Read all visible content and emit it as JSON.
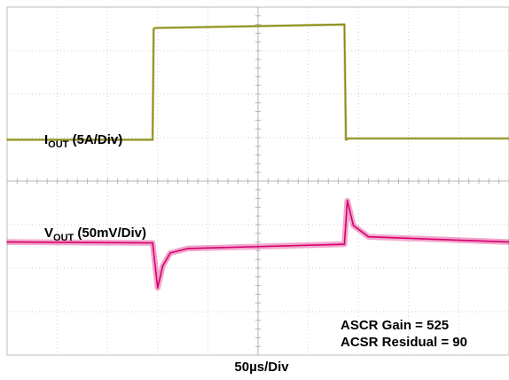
{
  "chart_data": {
    "type": "line",
    "title": "",
    "xlabel": "50µs/Div",
    "ylabel": "",
    "grid": true,
    "x_divisions": 10,
    "y_divisions": 8,
    "xlim": [
      0,
      10
    ],
    "x_unit": "div",
    "y_unit": "div",
    "ylim": [
      0,
      8
    ],
    "series": [
      {
        "name": "IOUT (5A/Div)",
        "color": "#8a8a12",
        "x": [
          0.0,
          2.9,
          2.92,
          2.95,
          6.72,
          6.75,
          6.8,
          10.0
        ],
        "y": [
          4.95,
          4.95,
          7.5,
          7.52,
          7.6,
          4.95,
          4.98,
          4.98
        ]
      },
      {
        "name": "VOUT (50mV/Div)",
        "color": "#d6006e",
        "x": [
          0.0,
          2.9,
          3.0,
          3.1,
          3.25,
          3.6,
          6.72,
          6.78,
          6.9,
          7.2,
          10.0
        ],
        "y": [
          2.6,
          2.58,
          1.55,
          2.05,
          2.35,
          2.45,
          2.55,
          3.55,
          2.98,
          2.72,
          2.6
        ]
      }
    ],
    "annotations": {
      "iout_label_main": "I",
      "iout_label_sub": "OUT",
      "iout_label_rest": " (5A/Div)",
      "vout_label_main": "V",
      "vout_label_sub": "OUT",
      "vout_label_rest": " (50mV/Div)",
      "gain_text": "ASCR Gain = 525",
      "residual_text": "ACSR Residual = 90"
    }
  }
}
